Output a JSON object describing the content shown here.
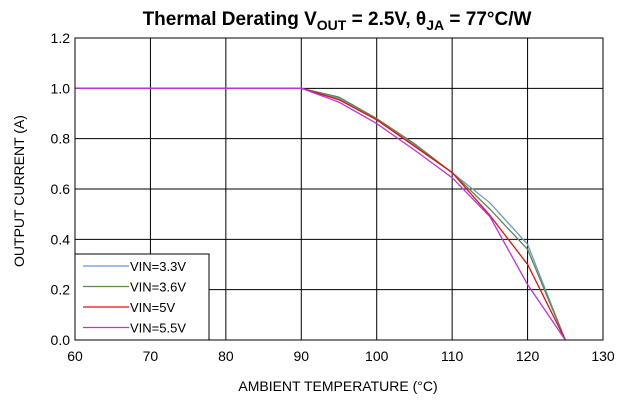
{
  "chart_data": {
    "type": "line",
    "title": {
      "main": "Thermal Derating V",
      "sub_out": "OUT",
      "mid": " = 2.5V, θ",
      "sub_ja": "JA",
      "end": " = 77°C/W"
    },
    "xlabel": "AMBIENT TEMPERATURE (°C)",
    "ylabel": "OUTPUT CURRENT (A)",
    "xlim": [
      60,
      130
    ],
    "ylim": [
      0,
      1.2
    ],
    "xticks": [
      "60",
      "70",
      "80",
      "90",
      "100",
      "110",
      "120",
      "130"
    ],
    "yticks": [
      "0.0",
      "0.2",
      "0.4",
      "0.6",
      "0.8",
      "1.0",
      "1.2"
    ],
    "grid": true,
    "legend_position": "bottom-left",
    "series": [
      {
        "name": "VIN=3.3V",
        "color": "#6f95cf",
        "x": [
          60,
          90,
          95,
          100,
          105,
          110,
          115,
          120,
          125
        ],
        "y": [
          1.0,
          1.0,
          0.96,
          0.875,
          0.775,
          0.665,
          0.545,
          0.38,
          0.0
        ]
      },
      {
        "name": "VIN=3.6V",
        "color": "#5a8a4a",
        "x": [
          60,
          90,
          95,
          100,
          105,
          110,
          115,
          120,
          125
        ],
        "y": [
          1.0,
          1.0,
          0.965,
          0.88,
          0.78,
          0.665,
          0.52,
          0.36,
          0.0
        ]
      },
      {
        "name": "VIN=5V",
        "color": "#e01010",
        "x": [
          60,
          90,
          95,
          100,
          105,
          110,
          115,
          120,
          125
        ],
        "y": [
          1.0,
          1.0,
          0.955,
          0.875,
          0.77,
          0.665,
          0.495,
          0.3,
          0.0
        ]
      },
      {
        "name": "VIN=5.5V",
        "color": "#c030e0",
        "x": [
          60,
          90,
          95,
          100,
          105,
          110,
          115,
          120,
          125
        ],
        "y": [
          1.0,
          1.0,
          0.945,
          0.86,
          0.755,
          0.645,
          0.49,
          0.22,
          0.0
        ]
      }
    ]
  }
}
